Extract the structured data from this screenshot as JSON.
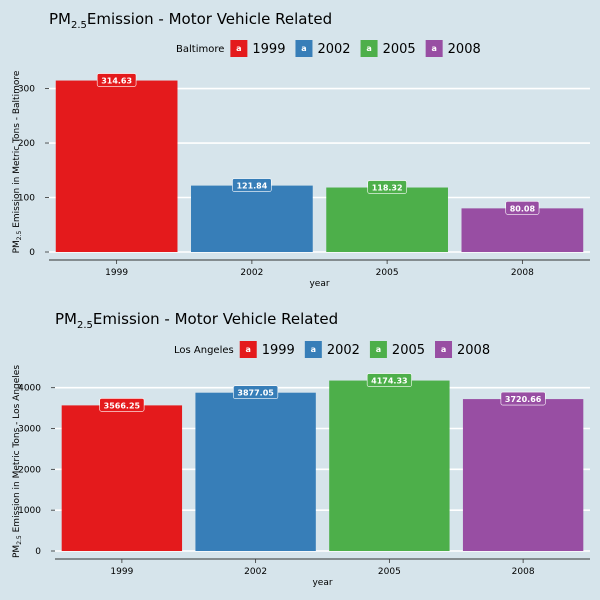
{
  "chart_data": [
    {
      "type": "bar",
      "title_prefix": "PM",
      "title_sub": "2.5",
      "title_suffix": "Emission - Motor Vehicle Related",
      "legend_title": "Baltimore",
      "categories": [
        "1999",
        "2002",
        "2005",
        "2008"
      ],
      "values": [
        314.63,
        121.84,
        118.32,
        80.08
      ],
      "labels": [
        "314.63",
        "121.84",
        "118.32",
        "80.08"
      ],
      "colors": [
        "#e41a1c",
        "#377eb8",
        "#4daf4a",
        "#984ea3"
      ],
      "xlabel": "year",
      "ylabel_prefix": "PM",
      "ylabel_sub": "2.5",
      "ylabel_suffix": " Emission in Metric Tons - Baltimore",
      "yticks": [
        0,
        100,
        200,
        300
      ],
      "ylim": [
        0,
        345
      ],
      "grid": true,
      "legend_position": "top"
    },
    {
      "type": "bar",
      "title_prefix": "PM",
      "title_sub": "2.5",
      "title_suffix": "Emission - Motor Vehicle Related",
      "legend_title": "Los Angeles",
      "categories": [
        "1999",
        "2002",
        "2005",
        "2008"
      ],
      "values": [
        3566.25,
        3877.05,
        4174.33,
        3720.66
      ],
      "labels": [
        "3566.25",
        "3877.05",
        "4174.33",
        "3720.66"
      ],
      "colors": [
        "#e41a1c",
        "#377eb8",
        "#4daf4a",
        "#984ea3"
      ],
      "xlabel": "year",
      "ylabel_prefix": "PM",
      "ylabel_sub": "2.5",
      "ylabel_suffix": " Emission in Metric Tons - Los Angeles",
      "yticks": [
        0,
        1000,
        2000,
        3000,
        4000
      ],
      "ylim": [
        0,
        4580
      ],
      "grid": true,
      "legend_position": "top"
    }
  ],
  "legend_key_glyph": "a"
}
